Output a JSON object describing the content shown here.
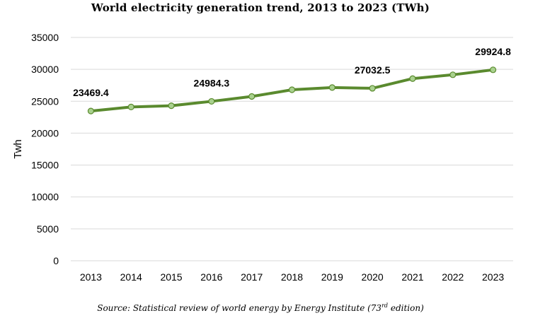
{
  "chart_data": {
    "type": "line",
    "title": "World electricity generation trend, 2013 to 2023 (TWh)",
    "xlabel": "",
    "ylabel": "Twh",
    "ylim": [
      0,
      35000
    ],
    "yticks": [
      0,
      5000,
      10000,
      15000,
      20000,
      25000,
      30000,
      35000
    ],
    "grid": true,
    "categories": [
      "2013",
      "2014",
      "2015",
      "2016",
      "2017",
      "2018",
      "2019",
      "2020",
      "2021",
      "2022",
      "2023"
    ],
    "series": [
      {
        "name": "World electricity generation",
        "values": [
          23469.4,
          24100,
          24300,
          24984.3,
          25750,
          26800,
          27150,
          27032.5,
          28550,
          29150,
          29924.8
        ],
        "color": "#5a8a2e",
        "marker_fill": "#a9d18e"
      }
    ],
    "data_labels": [
      {
        "index": 0,
        "text": "23469.4"
      },
      {
        "index": 3,
        "text": "24984.3"
      },
      {
        "index": 7,
        "text": "27032.5"
      },
      {
        "index": 10,
        "text": "29924.8"
      }
    ],
    "source": {
      "prefix": "Source: Statistical review of world energy by Energy Institute (73",
      "sup": "rd",
      "suffix": " edition)"
    }
  }
}
